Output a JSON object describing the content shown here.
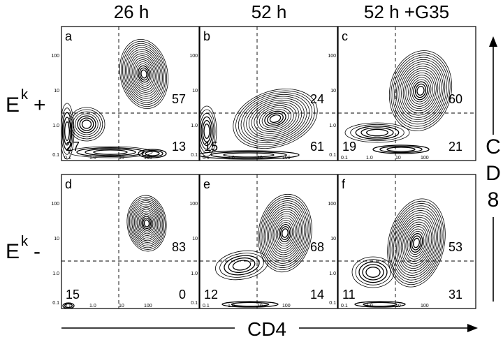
{
  "figure": {
    "column_titles": [
      "26 h",
      "52 h",
      "52 h +G35"
    ],
    "row_labels": [
      {
        "base": "E",
        "sup": "k",
        "sign": "+"
      },
      {
        "base": "E",
        "sup": "k",
        "sign": "-"
      }
    ],
    "x_axis_title": "CD4",
    "y_axis_letters": [
      "C",
      "D",
      "8"
    ]
  },
  "chart_data": {
    "type": "contour",
    "x_axis": {
      "label": "CD4",
      "scale": "log",
      "ticks": [
        "0.1",
        "1.0",
        "10",
        "100"
      ]
    },
    "y_axis": {
      "label": "CD8",
      "scale": "log",
      "ticks": [
        "0.1",
        "1.0",
        "10",
        "100"
      ]
    },
    "panels": [
      {
        "letter": "a",
        "column": "26 h",
        "row": "Ek +",
        "quadrant_percent": {
          "upper_right": "57",
          "lower_left": "27",
          "lower_right": "13"
        }
      },
      {
        "letter": "b",
        "column": "52 h",
        "row": "Ek +",
        "quadrant_percent": {
          "upper_right": "24",
          "lower_left": "15",
          "lower_right": "61"
        }
      },
      {
        "letter": "c",
        "column": "52 h +G35",
        "row": "Ek +",
        "quadrant_percent": {
          "upper_right": "60",
          "lower_left": "19",
          "lower_right": "21"
        }
      },
      {
        "letter": "d",
        "column": "26 h",
        "row": "Ek -",
        "quadrant_percent": {
          "upper_right": "83",
          "lower_left": "15",
          "lower_right": "0"
        }
      },
      {
        "letter": "e",
        "column": "52 h",
        "row": "Ek -",
        "quadrant_percent": {
          "upper_right": "68",
          "lower_left": "12",
          "lower_right": "14"
        }
      },
      {
        "letter": "f",
        "column": "52 h +G35",
        "row": "Ek -",
        "quadrant_percent": {
          "upper_right": "53",
          "lower_left": "11",
          "lower_right": "31"
        }
      }
    ]
  }
}
